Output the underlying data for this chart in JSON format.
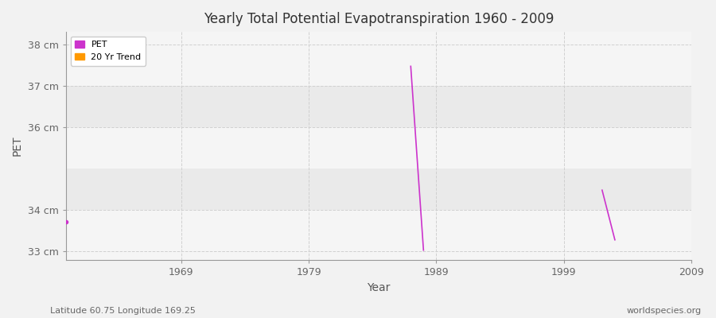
{
  "title": "Yearly Total Potential Evapotranspiration 1960 - 2009",
  "xlabel": "Year",
  "ylabel": "PET",
  "footnote_left": "Latitude 60.75 Longitude 169.25",
  "footnote_right": "worldspecies.org",
  "xlim": [
    1960,
    2009
  ],
  "ylim": [
    32.8,
    38.3
  ],
  "yticks": [
    33,
    34,
    36,
    37,
    38
  ],
  "ytick_labels": [
    "33 cm",
    "34 cm",
    "36 cm",
    "37 cm",
    "38 cm"
  ],
  "xticks": [
    1969,
    1979,
    1989,
    1999,
    2009
  ],
  "bg_color": "#f2f2f2",
  "plot_bg_light": "#f5f5f5",
  "plot_bg_dark": "#e8e8e8",
  "grid_color": "#d0d0d0",
  "pet_color": "#cc33cc",
  "trend_color": "#ff9900",
  "pet_x": [
    1960,
    1987,
    1988,
    2002,
    2003
  ],
  "pet_y": [
    33.72,
    37.47,
    33.03,
    34.48,
    33.28
  ],
  "legend_entries": [
    "PET",
    "20 Yr Trend"
  ],
  "band_boundaries": [
    33,
    34,
    35,
    36,
    37,
    38
  ],
  "band_light": "#f5f5f5",
  "band_dark": "#eaeaea"
}
